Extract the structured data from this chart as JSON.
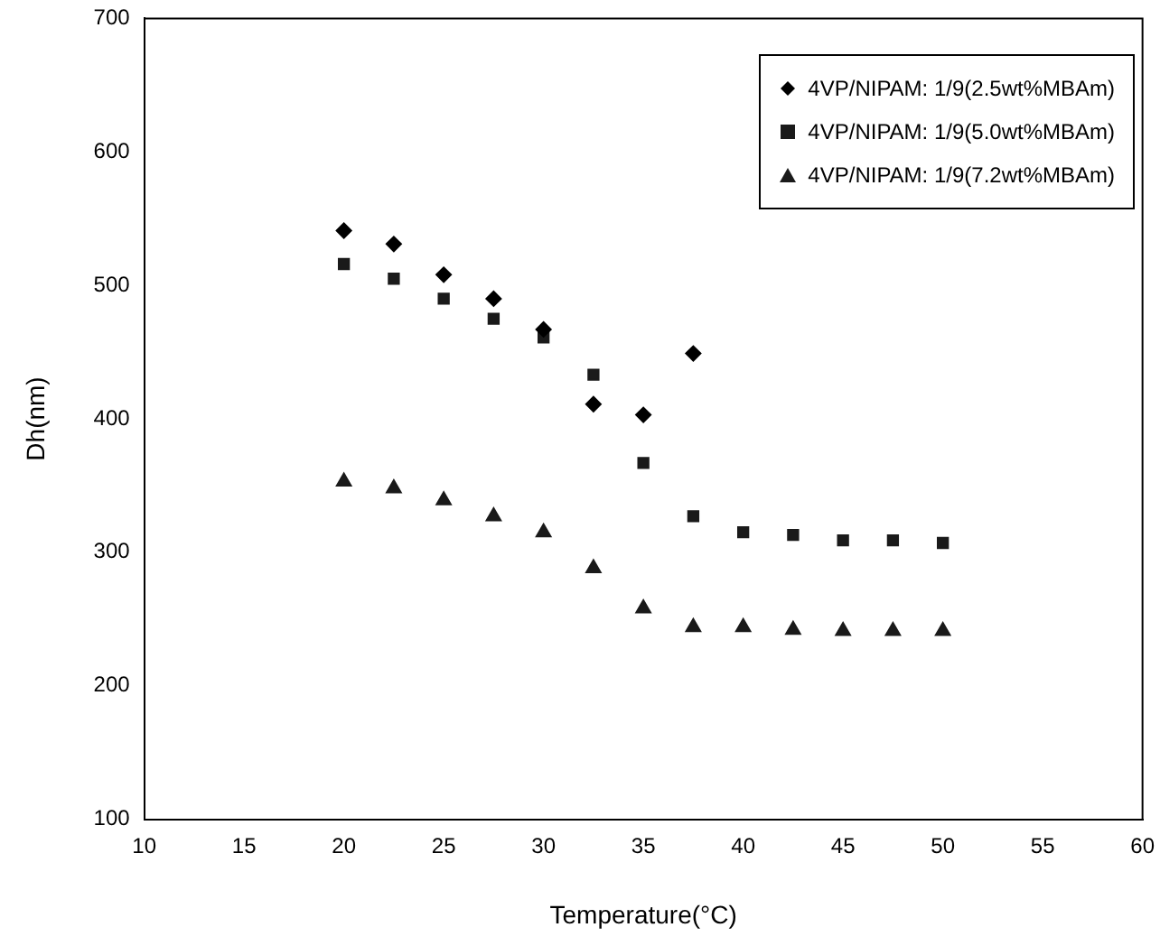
{
  "chart_data": {
    "type": "scatter",
    "xlabel": "Temperature(°C)",
    "ylabel": "Dh(nm)",
    "xlim": [
      10,
      60
    ],
    "xticks": [
      10,
      15,
      20,
      25,
      30,
      35,
      40,
      45,
      50,
      55,
      60
    ],
    "ylim": [
      100,
      700
    ],
    "yticks": [
      100,
      200,
      300,
      400,
      500,
      600,
      700
    ],
    "grid": false,
    "legend": "top right",
    "x": [
      20,
      22.5,
      25,
      27.5,
      30,
      32.5,
      35,
      37.5,
      40,
      42.5,
      45,
      47.5,
      50
    ],
    "series": [
      {
        "name": "4VP/NIPAM: 1/9(2.5wt%MBAm)",
        "color": "#000000",
        "marker": "diamond",
        "values": [
          541,
          531,
          508,
          490,
          467,
          411,
          403,
          449,
          null,
          null,
          null,
          null,
          null
        ]
      },
      {
        "name": "4VP/NIPAM: 1/9(5.0wt%MBAm)",
        "color": "#1a1a1a",
        "marker": "square",
        "values": [
          516,
          505,
          490,
          475,
          461,
          433,
          367,
          327,
          315,
          313,
          309,
          309,
          307
        ]
      },
      {
        "name": "4VP/NIPAM: 1/9(7.2wt%MBAm)",
        "color": "#1a1a1a",
        "marker": "triangle",
        "values": [
          353,
          348,
          339,
          327,
          315,
          288,
          258,
          244,
          244,
          242,
          241,
          241,
          241
        ]
      }
    ]
  }
}
